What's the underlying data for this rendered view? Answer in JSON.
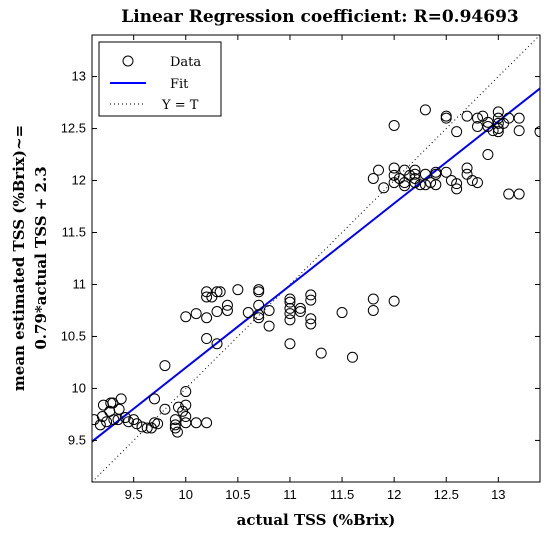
{
  "chart_data": {
    "type": "scatter",
    "title": "Linear Regression coefficient: R=0.94693",
    "xlabel": "actual TSS (%Brix)",
    "ylabel_lines": [
      "mean estimated TSS (%Brix)~=",
      "0.79*actual TSS + 2.3"
    ],
    "xlim": [
      9.1,
      13.4
    ],
    "ylim": [
      9.1,
      13.4
    ],
    "xticks": [
      "9.5",
      "10",
      "10.5",
      "11",
      "11.5",
      "12",
      "12.5",
      "13"
    ],
    "yticks": [
      "9.5",
      "10",
      "10.5",
      "11",
      "11.5",
      "12",
      "12.5",
      "13"
    ],
    "grid": false,
    "legend_position": "top-left",
    "series": [
      {
        "name": "Data",
        "kind": "markers",
        "color": "#000000",
        "points": [
          [
            9.12,
            9.7
          ],
          [
            9.18,
            9.65
          ],
          [
            9.2,
            9.73
          ],
          [
            9.21,
            9.84
          ],
          [
            9.24,
            9.68
          ],
          [
            9.27,
            9.78
          ],
          [
            9.28,
            9.86
          ],
          [
            9.3,
            9.86
          ],
          [
            9.31,
            9.7
          ],
          [
            9.35,
            9.7
          ],
          [
            9.36,
            9.8
          ],
          [
            9.38,
            9.9
          ],
          [
            9.42,
            9.72
          ],
          [
            9.45,
            9.68
          ],
          [
            9.5,
            9.7
          ],
          [
            9.53,
            9.66
          ],
          [
            9.58,
            9.63
          ],
          [
            9.63,
            9.62
          ],
          [
            9.67,
            9.62
          ],
          [
            9.7,
            9.67
          ],
          [
            9.73,
            9.66
          ],
          [
            9.7,
            9.9
          ],
          [
            9.8,
            10.22
          ],
          [
            9.8,
            9.8
          ],
          [
            9.9,
            9.65
          ],
          [
            9.9,
            9.62
          ],
          [
            9.92,
            9.58
          ],
          [
            9.9,
            9.7
          ],
          [
            9.93,
            9.82
          ],
          [
            9.97,
            9.78
          ],
          [
            10.0,
            9.84
          ],
          [
            10.0,
            9.97
          ],
          [
            10.0,
            9.73
          ],
          [
            10.0,
            9.67
          ],
          [
            10.1,
            9.67
          ],
          [
            10.2,
            9.67
          ],
          [
            10.0,
            10.69
          ],
          [
            10.1,
            10.72
          ],
          [
            10.2,
            10.88
          ],
          [
            10.2,
            10.93
          ],
          [
            10.25,
            10.88
          ],
          [
            10.3,
            10.93
          ],
          [
            10.33,
            10.93
          ],
          [
            10.2,
            10.68
          ],
          [
            10.3,
            10.74
          ],
          [
            10.4,
            10.75
          ],
          [
            10.4,
            10.8
          ],
          [
            10.2,
            10.48
          ],
          [
            10.3,
            10.43
          ],
          [
            10.5,
            10.95
          ],
          [
            10.6,
            10.73
          ],
          [
            10.7,
            10.95
          ],
          [
            10.7,
            10.93
          ],
          [
            10.7,
            10.8
          ],
          [
            10.7,
            10.71
          ],
          [
            10.7,
            10.68
          ],
          [
            10.8,
            10.75
          ],
          [
            10.8,
            10.6
          ],
          [
            11.0,
            10.86
          ],
          [
            11.0,
            10.83
          ],
          [
            11.0,
            10.77
          ],
          [
            11.0,
            10.72
          ],
          [
            11.0,
            10.66
          ],
          [
            11.0,
            10.43
          ],
          [
            11.1,
            10.77
          ],
          [
            11.1,
            10.74
          ],
          [
            11.2,
            10.9
          ],
          [
            11.2,
            10.85
          ],
          [
            11.2,
            10.67
          ],
          [
            11.2,
            10.62
          ],
          [
            11.3,
            10.34
          ],
          [
            11.5,
            10.73
          ],
          [
            11.6,
            10.3
          ],
          [
            11.8,
            10.86
          ],
          [
            11.8,
            10.75
          ],
          [
            12.0,
            10.84
          ],
          [
            11.8,
            12.02
          ],
          [
            11.85,
            12.1
          ],
          [
            11.9,
            11.93
          ],
          [
            12.0,
            12.53
          ],
          [
            12.0,
            12.12
          ],
          [
            12.0,
            12.05
          ],
          [
            12.0,
            11.98
          ],
          [
            12.05,
            12.02
          ],
          [
            12.1,
            12.1
          ],
          [
            12.1,
            11.98
          ],
          [
            12.1,
            11.95
          ],
          [
            12.15,
            12.05
          ],
          [
            12.2,
            12.1
          ],
          [
            12.2,
            12.06
          ],
          [
            12.2,
            12.02
          ],
          [
            12.2,
            11.98
          ],
          [
            12.25,
            11.96
          ],
          [
            12.3,
            12.68
          ],
          [
            12.3,
            12.06
          ],
          [
            12.3,
            11.96
          ],
          [
            12.35,
            11.98
          ],
          [
            12.4,
            12.06
          ],
          [
            12.4,
            12.08
          ],
          [
            12.4,
            11.96
          ],
          [
            12.5,
            12.62
          ],
          [
            12.5,
            12.6
          ],
          [
            12.5,
            12.08
          ],
          [
            12.55,
            12.0
          ],
          [
            12.6,
            11.97
          ],
          [
            12.6,
            11.92
          ],
          [
            12.6,
            12.47
          ],
          [
            12.7,
            12.62
          ],
          [
            12.7,
            12.12
          ],
          [
            12.7,
            12.06
          ],
          [
            12.75,
            12.0
          ],
          [
            12.8,
            12.6
          ],
          [
            12.8,
            12.52
          ],
          [
            12.8,
            11.98
          ],
          [
            12.85,
            12.62
          ],
          [
            12.9,
            12.56
          ],
          [
            12.9,
            12.52
          ],
          [
            12.9,
            12.25
          ],
          [
            12.95,
            12.48
          ],
          [
            13.0,
            12.66
          ],
          [
            13.0,
            12.6
          ],
          [
            13.0,
            12.55
          ],
          [
            13.0,
            12.5
          ],
          [
            13.0,
            12.47
          ],
          [
            13.05,
            12.55
          ],
          [
            13.1,
            12.6
          ],
          [
            13.1,
            11.87
          ],
          [
            13.2,
            12.6
          ],
          [
            13.2,
            12.48
          ],
          [
            13.2,
            11.87
          ],
          [
            13.4,
            12.47
          ]
        ]
      },
      {
        "name": "Fit",
        "kind": "line",
        "color": "#0000ff",
        "slope": 0.79,
        "intercept": 2.3
      },
      {
        "name": "Y = T",
        "kind": "dotted-line",
        "color": "#000000",
        "slope": 1,
        "intercept": 0
      }
    ]
  }
}
